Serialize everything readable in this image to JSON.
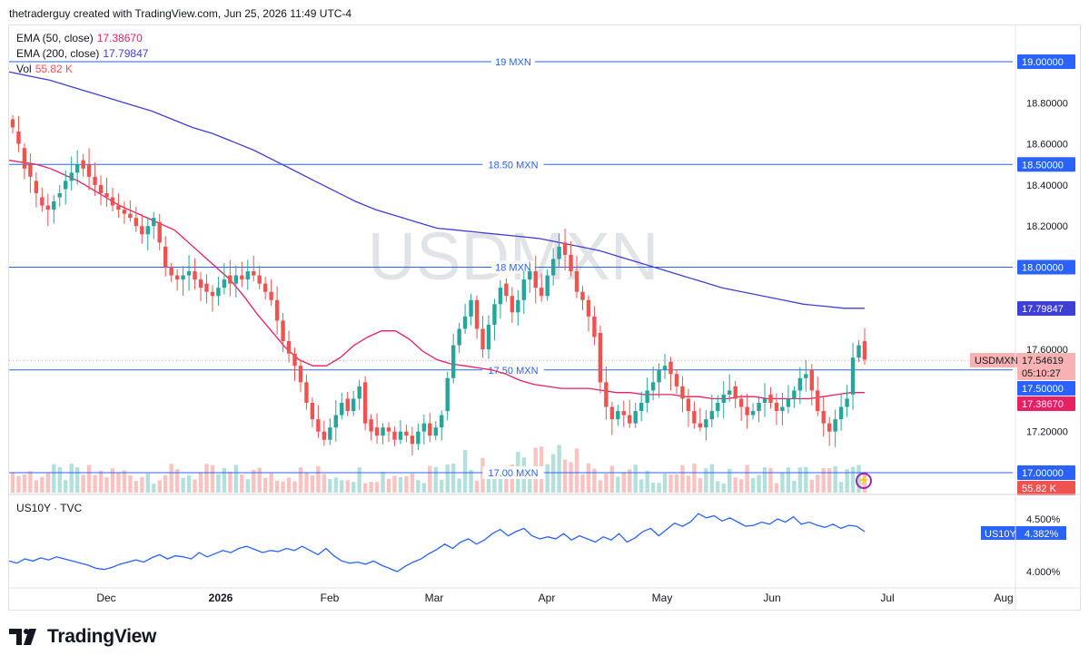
{
  "header": {
    "text": "thetraderguy created with TradingView.com, Jun 25, 2026 11:49 UTC-4"
  },
  "watermark": "USDMXN",
  "legend": {
    "ema50": {
      "label": "EMA (50, close)",
      "value": "17.38670",
      "color": "#e91e63"
    },
    "ema200": {
      "label": "EMA (200, close)",
      "value": "17.79847",
      "color": "#3f3fd6"
    },
    "vol": {
      "label": "Vol",
      "value": "55.82 K",
      "color": "#ef5350"
    },
    "us10y": {
      "label": "US10Y · TVC"
    }
  },
  "footer": {
    "brand": "TradingView",
    "logo_icon": "tradingview-logo-icon"
  },
  "colors": {
    "up": "#26a69a",
    "down": "#ef5350",
    "ema50": "#e91e63",
    "ema200": "#3f3fd6",
    "hline": "#2962ff",
    "us10y": "#2962ff"
  },
  "chart_data": [
    {
      "type": "candlestick",
      "title": "USDMXN",
      "ylim": [
        17.0,
        19.0
      ],
      "y_ticks": [
        "18.80000",
        "18.60000",
        "18.40000",
        "18.20000",
        "17.60000",
        "17.20000"
      ],
      "x_ticks": [
        "Dec",
        "2026",
        "Feb",
        "Mar",
        "Apr",
        "May",
        "Jun",
        "Jul",
        "Aug"
      ],
      "horizontal_lines": [
        {
          "label": "19 MXN",
          "value": 19.0,
          "tag": "19.00000"
        },
        {
          "label": "18.50 MXN",
          "value": 18.5,
          "tag": "18.50000"
        },
        {
          "label": "18 MXN",
          "value": 18.0,
          "tag": "18.00000"
        },
        {
          "label": "17.50 MXN",
          "value": 17.5,
          "tag": "17.50000"
        },
        {
          "label": "17.00 MXN",
          "value": 17.0,
          "tag": "17.00000"
        }
      ],
      "price_tags": {
        "ema200": "17.79847",
        "last_symbol": "USDMXN",
        "last_value": "17.54619",
        "countdown": "05:10:27",
        "ema50": "17.38670",
        "volume": "55.82 K"
      },
      "close_series": [
        18.68,
        18.6,
        18.48,
        18.44,
        18.36,
        18.3,
        18.28,
        18.32,
        18.36,
        18.42,
        18.46,
        18.5,
        18.48,
        18.44,
        18.4,
        18.36,
        18.34,
        18.3,
        18.28,
        18.26,
        18.24,
        18.2,
        18.16,
        18.2,
        18.24,
        18.12,
        18.0,
        17.96,
        17.94,
        17.96,
        17.98,
        17.94,
        17.9,
        17.88,
        17.86,
        17.9,
        17.94,
        17.92,
        17.96,
        17.94,
        17.98,
        17.96,
        17.92,
        17.88,
        17.84,
        17.74,
        17.64,
        17.58,
        17.52,
        17.44,
        17.34,
        17.26,
        17.2,
        17.16,
        17.22,
        17.28,
        17.34,
        17.3,
        17.36,
        17.42,
        17.24,
        17.2,
        17.18,
        17.22,
        17.2,
        17.16,
        17.2,
        17.18,
        17.14,
        17.2,
        17.24,
        17.18,
        17.22,
        17.28,
        17.46,
        17.62,
        17.7,
        17.76,
        17.84,
        17.7,
        17.6,
        17.72,
        17.82,
        17.9,
        17.86,
        17.78,
        17.84,
        17.94,
        17.98,
        17.9,
        17.86,
        17.96,
        18.04,
        18.1,
        18.06,
        17.98,
        17.88,
        17.84,
        17.76,
        17.66,
        17.44,
        17.32,
        17.26,
        17.3,
        17.28,
        17.24,
        17.3,
        17.34,
        17.4,
        17.44,
        17.5,
        17.52,
        17.48,
        17.42,
        17.36,
        17.3,
        17.24,
        17.22,
        17.26,
        17.3,
        17.34,
        17.38,
        17.4,
        17.36,
        17.32,
        17.28,
        17.3,
        17.34,
        17.36,
        17.34,
        17.3,
        17.32,
        17.36,
        17.4,
        17.46,
        17.48,
        17.4,
        17.3,
        17.24,
        17.2,
        17.26,
        17.32,
        17.36,
        17.56,
        17.62,
        17.55
      ],
      "open_series": [
        18.72,
        18.66,
        18.58,
        18.5,
        18.42,
        18.34,
        18.3,
        18.28,
        18.34,
        18.38,
        18.42,
        18.46,
        18.52,
        18.5,
        18.44,
        18.4,
        18.36,
        18.34,
        18.3,
        18.28,
        18.26,
        18.24,
        18.2,
        18.16,
        18.2,
        18.22,
        18.1,
        18.0,
        17.96,
        17.94,
        17.96,
        17.98,
        17.94,
        17.92,
        17.88,
        17.86,
        17.9,
        17.96,
        17.92,
        17.96,
        17.94,
        17.98,
        17.96,
        17.92,
        17.88,
        17.84,
        17.74,
        17.64,
        17.58,
        17.52,
        17.44,
        17.34,
        17.26,
        17.2,
        17.16,
        17.22,
        17.28,
        17.36,
        17.3,
        17.36,
        17.44,
        17.26,
        17.22,
        17.18,
        17.22,
        17.2,
        17.16,
        17.2,
        17.18,
        17.14,
        17.2,
        17.24,
        17.18,
        17.22,
        17.3,
        17.46,
        17.62,
        17.7,
        17.76,
        17.84,
        17.7,
        17.6,
        17.72,
        17.82,
        17.92,
        17.86,
        17.78,
        17.84,
        17.94,
        17.98,
        17.9,
        17.86,
        17.96,
        18.04,
        18.12,
        18.06,
        17.98,
        17.88,
        17.84,
        17.76,
        17.68,
        17.44,
        17.32,
        17.26,
        17.3,
        17.28,
        17.24,
        17.3,
        17.34,
        17.4,
        17.44,
        17.5,
        17.54,
        17.48,
        17.42,
        17.36,
        17.3,
        17.24,
        17.22,
        17.26,
        17.3,
        17.34,
        17.38,
        17.42,
        17.36,
        17.32,
        17.28,
        17.3,
        17.34,
        17.38,
        17.34,
        17.3,
        17.32,
        17.36,
        17.4,
        17.46,
        17.5,
        17.4,
        17.3,
        17.24,
        17.2,
        17.26,
        17.32,
        17.38,
        17.56,
        17.64
      ],
      "ema50_series": [
        18.52,
        18.51,
        18.5,
        18.48,
        18.45,
        18.42,
        18.38,
        18.34,
        18.3,
        18.27,
        18.24,
        18.21,
        18.18,
        18.12,
        18.06,
        18.0,
        17.94,
        17.86,
        17.77,
        17.69,
        17.61,
        17.55,
        17.52,
        17.52,
        17.56,
        17.62,
        17.66,
        17.69,
        17.69,
        17.65,
        17.59,
        17.55,
        17.53,
        17.52,
        17.51,
        17.5,
        17.48,
        17.45,
        17.43,
        17.42,
        17.41,
        17.41,
        17.41,
        17.4,
        17.39,
        17.39,
        17.38,
        17.38,
        17.38,
        17.37,
        17.37,
        17.36,
        17.36,
        17.37,
        17.37,
        17.36,
        17.36,
        17.36,
        17.36,
        17.37,
        17.38,
        17.39,
        17.39
      ],
      "ema200_series": [
        18.95,
        18.93,
        18.91,
        18.88,
        18.85,
        18.82,
        18.79,
        18.76,
        18.72,
        18.68,
        18.65,
        18.61,
        18.57,
        18.52,
        18.47,
        18.42,
        18.37,
        18.32,
        18.28,
        18.25,
        18.22,
        18.19,
        18.18,
        18.17,
        18.16,
        18.15,
        18.14,
        18.12,
        18.1,
        18.08,
        18.05,
        18.02,
        17.99,
        17.96,
        17.93,
        17.9,
        17.88,
        17.86,
        17.84,
        17.82,
        17.81,
        17.8,
        17.8
      ]
    },
    {
      "type": "line",
      "title": "US10Y · TVC",
      "ylim": [
        4.0,
        4.5
      ],
      "y_ticks": [
        "4.500%",
        "4.000%"
      ],
      "last_value": "4.382%",
      "last_symbol": "US10Y",
      "values": [
        4.1,
        4.08,
        4.12,
        4.1,
        4.13,
        4.11,
        4.14,
        4.12,
        4.1,
        4.08,
        4.06,
        4.03,
        4.02,
        4.04,
        4.07,
        4.09,
        4.11,
        4.09,
        4.13,
        4.16,
        4.12,
        4.15,
        4.14,
        4.12,
        4.18,
        4.14,
        4.17,
        4.2,
        4.18,
        4.22,
        4.24,
        4.21,
        4.18,
        4.2,
        4.19,
        4.22,
        4.2,
        4.24,
        4.2,
        4.16,
        4.22,
        4.15,
        4.1,
        4.08,
        4.09,
        4.07,
        4.1,
        4.06,
        4.03,
        4.0,
        4.05,
        4.09,
        4.12,
        4.17,
        4.21,
        4.26,
        4.22,
        4.28,
        4.31,
        4.26,
        4.3,
        4.36,
        4.4,
        4.34,
        4.38,
        4.41,
        4.34,
        4.31,
        4.33,
        4.31,
        4.36,
        4.3,
        4.34,
        4.31,
        4.28,
        4.33,
        4.3,
        4.36,
        4.28,
        4.32,
        4.38,
        4.41,
        4.34,
        4.4,
        4.46,
        4.43,
        4.47,
        4.55,
        4.51,
        4.53,
        4.48,
        4.51,
        4.47,
        4.43,
        4.44,
        4.47,
        4.45,
        4.5,
        4.47,
        4.52,
        4.45,
        4.47,
        4.44,
        4.42,
        4.45,
        4.41,
        4.44,
        4.43,
        4.38
      ]
    }
  ]
}
